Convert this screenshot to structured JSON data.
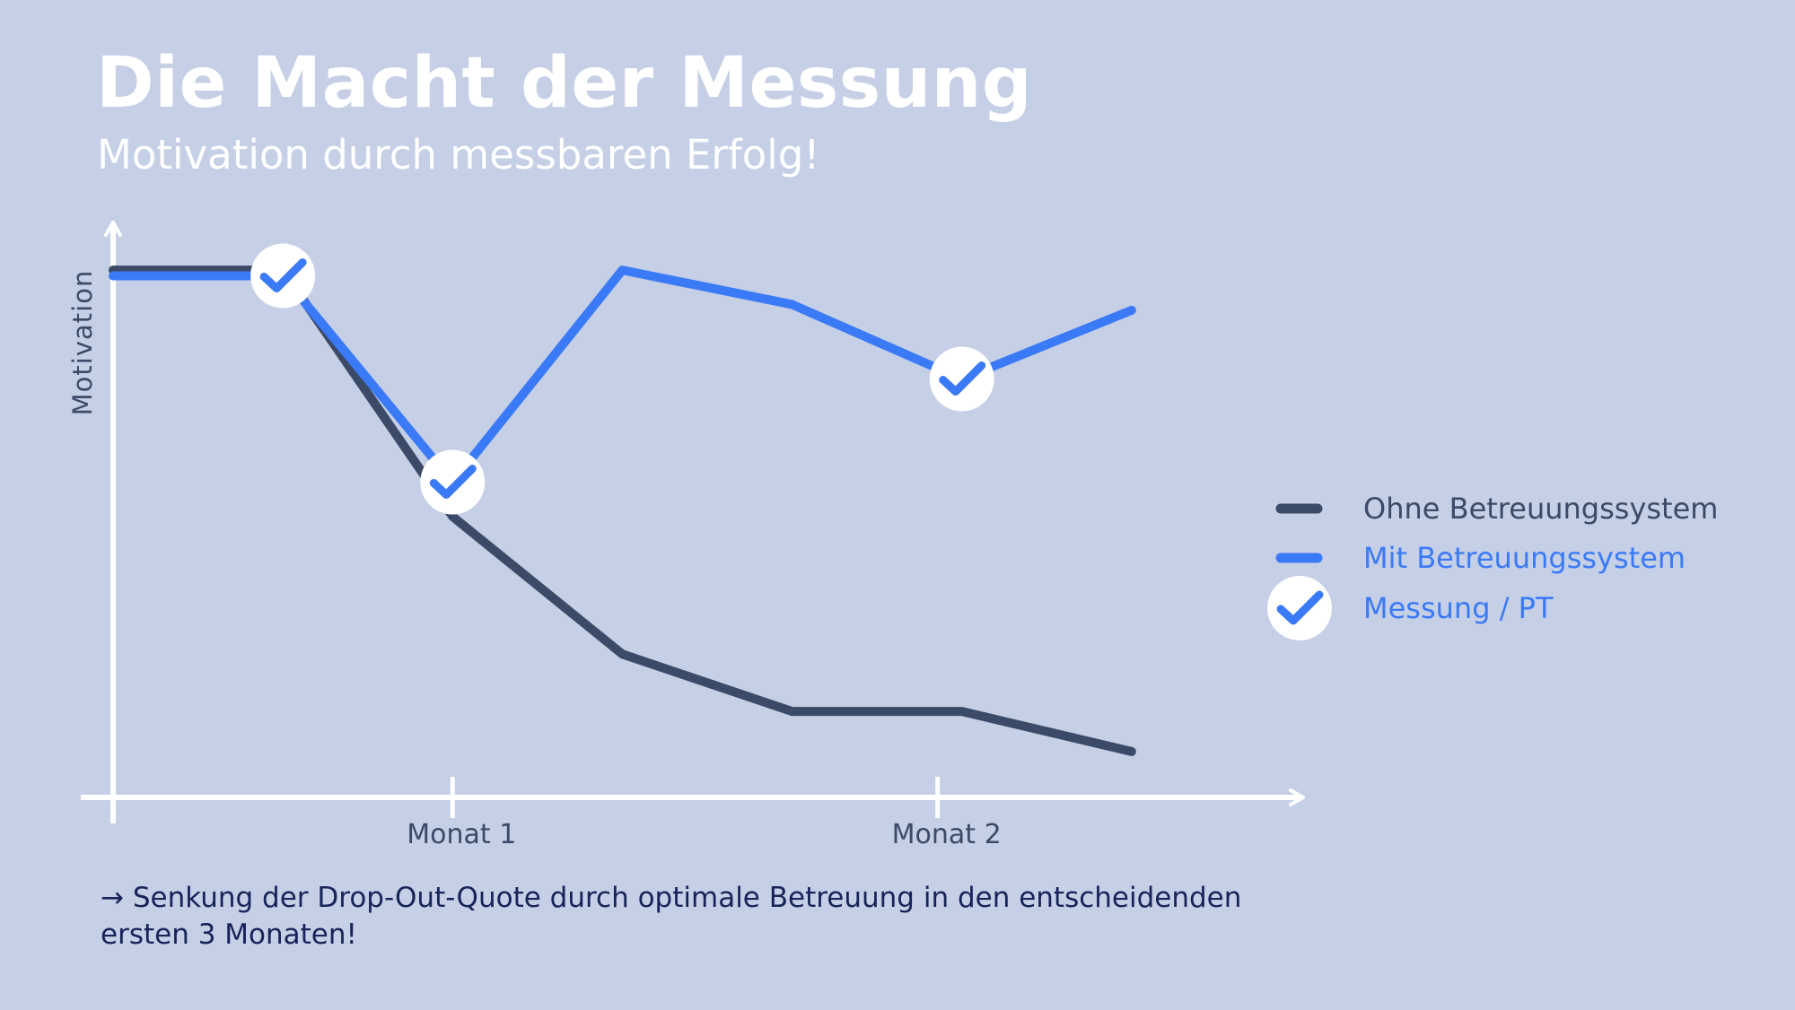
{
  "title": "Die Macht der Messung",
  "subtitle": "Motivation durch messbaren Erfolg!",
  "caption": "→ Senkung der Drop-Out-Quote durch optimale Betreuung in den entscheidenden ersten 3 Monaten!",
  "colors": {
    "background": "#c5cfe6",
    "ohne": "#3b4a66",
    "mit": "#3b7af6",
    "axis": "#ffffff",
    "tick_text": "#3b4a66",
    "caption": "#17245a"
  },
  "chart_data": {
    "type": "line",
    "title": "",
    "xlabel": "",
    "ylabel": "Motivation",
    "xlim": [
      0,
      2.45
    ],
    "ylim": [
      0,
      1
    ],
    "grid": false,
    "legend_placement": "right",
    "x_ticks": [
      {
        "x": 0.7,
        "label": "Monat 1"
      },
      {
        "x": 1.7,
        "label": "Monat 2"
      }
    ],
    "series": [
      {
        "name": "Ohne Betreuungssystem",
        "color": "#3b4a66",
        "points": [
          [
            0,
            0.92
          ],
          [
            0.35,
            0.92
          ],
          [
            0.7,
            0.49
          ],
          [
            1.05,
            0.25
          ],
          [
            1.4,
            0.15
          ],
          [
            1.75,
            0.15
          ],
          [
            2.1,
            0.08
          ]
        ]
      },
      {
        "name": "Mit Betreuungssystem",
        "color": "#3b7af6",
        "points": [
          [
            0,
            0.91
          ],
          [
            0.35,
            0.91
          ],
          [
            0.7,
            0.55
          ],
          [
            1.05,
            0.92
          ],
          [
            1.4,
            0.86
          ],
          [
            1.75,
            0.73
          ],
          [
            2.1,
            0.85
          ]
        ]
      }
    ],
    "markers": {
      "name": "Messung / PT",
      "icon": "check-circle-icon",
      "points": [
        [
          0.35,
          0.91
        ],
        [
          0.7,
          0.55
        ],
        [
          1.75,
          0.73
        ]
      ]
    }
  }
}
